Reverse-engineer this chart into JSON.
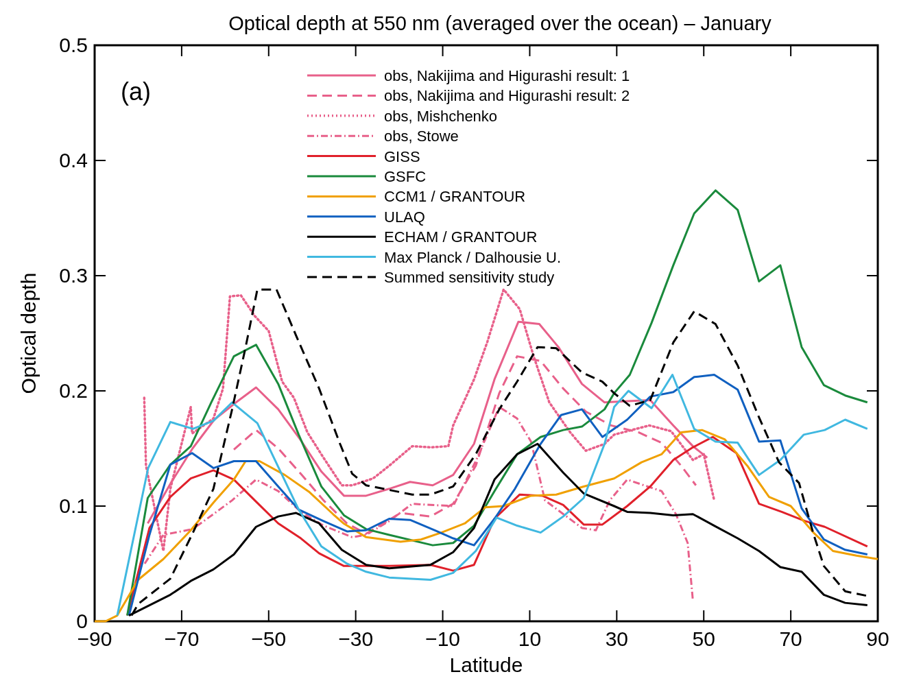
{
  "chart_data": {
    "type": "line",
    "title": "Optical depth at 550 nm (averaged over the ocean) – January",
    "xlabel": "Latitude",
    "ylabel": "Optical depth",
    "xlim": [
      -90,
      90
    ],
    "xticks": [
      -90,
      -70,
      -50,
      -30,
      -10,
      10,
      30,
      50,
      70,
      90
    ],
    "ylim": [
      0,
      0.5
    ],
    "yticks": [
      0,
      0.1,
      0.2,
      0.3,
      0.4,
      0.5
    ],
    "grid": false,
    "legend": "top",
    "annotations": [
      "(a)"
    ],
    "series": [
      {
        "name": "obs, Nakijima and Higurashi result: 1",
        "color": "#e8608a",
        "line_style": "solid",
        "x": [
          -77.8,
          -72.5,
          -67.5,
          -62.5,
          -57.5,
          -52.9,
          -47.8,
          -42.6,
          -37.9,
          -32.7,
          -27.6,
          -22.3,
          -17.5,
          -12.3,
          -7.6,
          -2.8,
          1.9,
          7.4,
          12.2,
          16.6,
          22,
          27.2,
          32.4,
          37.7,
          43,
          47.5,
          50.8
        ],
        "values": [
          0.085,
          0.12,
          0.15,
          0.175,
          0.19,
          0.203,
          0.184,
          0.157,
          0.13,
          0.109,
          0.109,
          0.115,
          0.121,
          0.118,
          0.127,
          0.154,
          0.21,
          0.26,
          0.258,
          0.238,
          0.206,
          0.19,
          0.191,
          0.192,
          0.17,
          0.152,
          0.142
        ]
      },
      {
        "name": "obs, Nakijima and Higurashi result: 2",
        "color": "#e8608a",
        "line_style": "dashed",
        "x": [
          -58,
          -52.9,
          -47.8,
          -42.6,
          -37.4,
          -32,
          -27.6,
          -19.7,
          -12.8,
          -7.6,
          -2.4,
          3,
          7.1,
          12.5,
          17.7,
          22.9,
          28.7,
          35,
          40.3,
          44.8,
          48.2
        ],
        "values": [
          0.149,
          0.166,
          0.15,
          0.128,
          0.105,
          0.085,
          0.076,
          0.094,
          0.091,
          0.102,
          0.135,
          0.198,
          0.23,
          0.226,
          0.202,
          0.182,
          0.17,
          0.164,
          0.155,
          0.135,
          0.118
        ]
      },
      {
        "name": "obs, Mishchenko",
        "color": "#e8608a",
        "line_style": "dotted",
        "x": [
          -78.6,
          -78.2,
          -74.2,
          -72.6,
          -67.9,
          -67.6,
          -62.7,
          -60.5,
          -58.9,
          -56.4,
          -53.2,
          -50,
          -46.9,
          -44.2,
          -41.1,
          -37.4,
          -33.2,
          -30.8,
          -26,
          -22.3,
          -17,
          -12.8,
          -8.7,
          -7.6,
          -2.8,
          0.3,
          4,
          7.7,
          10.9,
          14.5,
          19.3,
          22.9,
          27.2,
          29.4,
          37.5,
          42.5,
          47.5,
          50,
          52.4
        ],
        "values": [
          0.194,
          0.135,
          0.061,
          0.115,
          0.186,
          0.163,
          0.176,
          0.202,
          0.282,
          0.283,
          0.265,
          0.252,
          0.208,
          0.194,
          0.164,
          0.142,
          0.118,
          0.118,
          0.124,
          0.135,
          0.152,
          0.151,
          0.152,
          0.17,
          0.21,
          0.243,
          0.288,
          0.271,
          0.23,
          0.19,
          0.164,
          0.148,
          0.154,
          0.162,
          0.17,
          0.165,
          0.14,
          0.145,
          0.105
        ]
      },
      {
        "name": "obs, Stowe",
        "color": "#e8608a",
        "line_style": "dashdot",
        "x": [
          -78.5,
          -74.2,
          -67.5,
          -62.7,
          -58.4,
          -52.9,
          -47.8,
          -42.6,
          -37.4,
          -30.8,
          -27.6,
          -22.3,
          -17,
          -12.8,
          -7.6,
          -2.4,
          3,
          7.1,
          10.3,
          13.5,
          22,
          25.2,
          28.4,
          32.4,
          36.3,
          40.3,
          43.6,
          46.3,
          47.5
        ],
        "values": [
          0.05,
          0.075,
          0.08,
          0.093,
          0.105,
          0.123,
          0.113,
          0.095,
          0.083,
          0.073,
          0.075,
          0.087,
          0.102,
          0.101,
          0.1,
          0.139,
          0.186,
          0.176,
          0.156,
          0.105,
          0.081,
          0.079,
          0.105,
          0.123,
          0.118,
          0.113,
          0.093,
          0.068,
          0.018
        ]
      },
      {
        "name": "GISS",
        "color": "#e0202a",
        "line_style": "solid",
        "x": [
          -82.5,
          -77.4,
          -72.6,
          -67.9,
          -62.7,
          -58,
          -53.2,
          -47.8,
          -42.6,
          -38.4,
          -32.7,
          -22.3,
          -12.8,
          -7.6,
          -2.8,
          1.9,
          7.7,
          12.9,
          17.7,
          22.4,
          26.7,
          32.4,
          37.7,
          43,
          47.5,
          52.1,
          57.5,
          62.7,
          67.9,
          73.3,
          77.8,
          87.6
        ],
        "values": [
          0.005,
          0.081,
          0.108,
          0.124,
          0.131,
          0.123,
          0.105,
          0.085,
          0.072,
          0.059,
          0.048,
          0.048,
          0.049,
          0.044,
          0.049,
          0.089,
          0.11,
          0.109,
          0.101,
          0.084,
          0.084,
          0.1,
          0.117,
          0.14,
          0.151,
          0.16,
          0.146,
          0.102,
          0.095,
          0.087,
          0.082,
          0.065
        ]
      },
      {
        "name": "GSFC",
        "color": "#1a8a3c",
        "line_style": "solid",
        "x": [
          -82.5,
          -77.8,
          -72.6,
          -67.9,
          -63.2,
          -58,
          -52.9,
          -47.8,
          -43.1,
          -37.9,
          -32.7,
          -27.6,
          -22.3,
          -12.3,
          -7.6,
          -2.8,
          1.9,
          7.1,
          12.5,
          17.7,
          22,
          27.2,
          29.4,
          33,
          38,
          43,
          47.8,
          52.7,
          57.8,
          62.7,
          67.6,
          72.5,
          77.6,
          82.5,
          87.6
        ],
        "values": [
          0.005,
          0.107,
          0.136,
          0.152,
          0.19,
          0.23,
          0.24,
          0.206,
          0.162,
          0.117,
          0.092,
          0.08,
          0.075,
          0.066,
          0.068,
          0.083,
          0.113,
          0.145,
          0.16,
          0.166,
          0.169,
          0.184,
          0.198,
          0.214,
          0.259,
          0.309,
          0.354,
          0.374,
          0.357,
          0.295,
          0.309,
          0.238,
          0.205,
          0.196,
          0.19
        ]
      },
      {
        "name": "CCM1 / GRANTOUR",
        "color": "#f0a000",
        "line_style": "solid",
        "x": [
          -90,
          -87.5,
          -84.8,
          -80,
          -74.2,
          -67.9,
          -62.7,
          -58,
          -55.3,
          -52.1,
          -46.3,
          -40.6,
          -35.2,
          -32.8,
          -27.6,
          -19.7,
          -15,
          -10.3,
          -4.9,
          -0.2,
          4,
          10.3,
          16.1,
          22.4,
          29.4,
          35.7,
          40.3,
          44.8,
          49.6,
          54.8,
          60,
          65,
          70,
          75.2,
          79.7,
          85.1,
          90
        ],
        "values": [
          0,
          0,
          0.005,
          0.036,
          0.054,
          0.079,
          0.103,
          0.123,
          0.139,
          0.139,
          0.127,
          0.112,
          0.093,
          0.085,
          0.073,
          0.069,
          0.071,
          0.077,
          0.085,
          0.099,
          0.1,
          0.109,
          0.11,
          0.117,
          0.124,
          0.138,
          0.145,
          0.164,
          0.166,
          0.158,
          0.135,
          0.108,
          0.1,
          0.077,
          0.061,
          0.057,
          0.054
        ]
      },
      {
        "name": "ULAQ",
        "color": "#1060c0",
        "line_style": "solid",
        "x": [
          -82.1,
          -77.4,
          -72.6,
          -67.6,
          -62.7,
          -58,
          -52.9,
          -47.8,
          -43.1,
          -37.4,
          -32,
          -27.6,
          -22.3,
          -17.5,
          -11.8,
          -7.6,
          -2.8,
          1.9,
          6.6,
          12.5,
          17.2,
          22,
          26.7,
          32.4,
          37.7,
          43,
          47.8,
          52.4,
          57.8,
          62.7,
          67.6,
          72.5,
          77.6,
          82.5,
          87.6
        ],
        "values": [
          0.005,
          0.075,
          0.136,
          0.146,
          0.133,
          0.139,
          0.139,
          0.117,
          0.097,
          0.087,
          0.078,
          0.079,
          0.089,
          0.088,
          0.079,
          0.072,
          0.066,
          0.089,
          0.115,
          0.154,
          0.179,
          0.184,
          0.16,
          0.175,
          0.195,
          0.199,
          0.212,
          0.214,
          0.201,
          0.156,
          0.157,
          0.098,
          0.071,
          0.062,
          0.058
        ]
      },
      {
        "name": "ECHAM / GRANTOUR",
        "color": "#000000",
        "line_style": "solid",
        "x": [
          -82.1,
          -72.6,
          -67.9,
          -62.7,
          -58,
          -52.9,
          -47.8,
          -43.7,
          -38.4,
          -33.2,
          -27.6,
          -22.3,
          -12.8,
          -7.6,
          -2.8,
          1.9,
          7.1,
          11.8,
          17.7,
          22.4,
          29.4,
          32.4,
          37.7,
          43,
          47.5,
          52.4,
          57.8,
          62.7,
          67.6,
          72.5,
          77.6,
          82.5,
          87.6
        ],
        "values": [
          0.005,
          0.023,
          0.035,
          0.045,
          0.058,
          0.082,
          0.091,
          0.094,
          0.085,
          0.062,
          0.049,
          0.046,
          0.049,
          0.06,
          0.081,
          0.123,
          0.145,
          0.154,
          0.129,
          0.111,
          0.1,
          0.095,
          0.094,
          0.092,
          0.093,
          0.083,
          0.072,
          0.061,
          0.047,
          0.043,
          0.023,
          0.016,
          0.014
        ]
      },
      {
        "name": "Max Planck / Dalhousie U.",
        "color": "#40b8e0",
        "line_style": "solid",
        "x": [
          -84.8,
          -77.7,
          -72.6,
          -67.4,
          -62.7,
          -58.4,
          -52.6,
          -47.8,
          -43.1,
          -37.9,
          -32,
          -27.6,
          -22.3,
          -12.8,
          -7.6,
          -2.4,
          2.4,
          7.1,
          12.5,
          17.7,
          22.4,
          27.2,
          29.4,
          32.7,
          38,
          42.8,
          47.8,
          52.7,
          57.8,
          62.7,
          67.6,
          73,
          77.8,
          82.5,
          87.6
        ],
        "values": [
          0.005,
          0.133,
          0.173,
          0.167,
          0.174,
          0.19,
          0.172,
          0.134,
          0.097,
          0.065,
          0.05,
          0.043,
          0.038,
          0.036,
          0.042,
          0.061,
          0.09,
          0.083,
          0.077,
          0.091,
          0.107,
          0.154,
          0.186,
          0.2,
          0.185,
          0.214,
          0.167,
          0.156,
          0.155,
          0.127,
          0.14,
          0.162,
          0.166,
          0.175,
          0.167
        ]
      },
      {
        "name": "Summed sensitivity study",
        "color": "#000000",
        "line_style": "dashed",
        "x": [
          -81.5,
          -80,
          -72.6,
          -67.4,
          -62.7,
          -58.4,
          -55.3,
          -52.6,
          -48.2,
          -43.7,
          -38.4,
          -33.6,
          -30.8,
          -27.6,
          -22.3,
          -17,
          -12.8,
          -7.6,
          -2.4,
          3,
          7.1,
          11.8,
          16.1,
          22,
          26.7,
          29.4,
          33,
          37.7,
          43,
          47.8,
          52.7,
          57.8,
          62.7,
          67.3,
          71.9,
          75.2,
          77.6,
          82.5,
          87.6
        ],
        "values": [
          0.005,
          0.015,
          0.037,
          0.077,
          0.115,
          0.184,
          0.238,
          0.288,
          0.288,
          0.248,
          0.202,
          0.154,
          0.128,
          0.118,
          0.114,
          0.11,
          0.11,
          0.117,
          0.145,
          0.184,
          0.208,
          0.238,
          0.237,
          0.216,
          0.208,
          0.198,
          0.187,
          0.192,
          0.242,
          0.269,
          0.258,
          0.222,
          0.177,
          0.138,
          0.12,
          0.076,
          0.048,
          0.026,
          0.022
        ]
      }
    ]
  }
}
